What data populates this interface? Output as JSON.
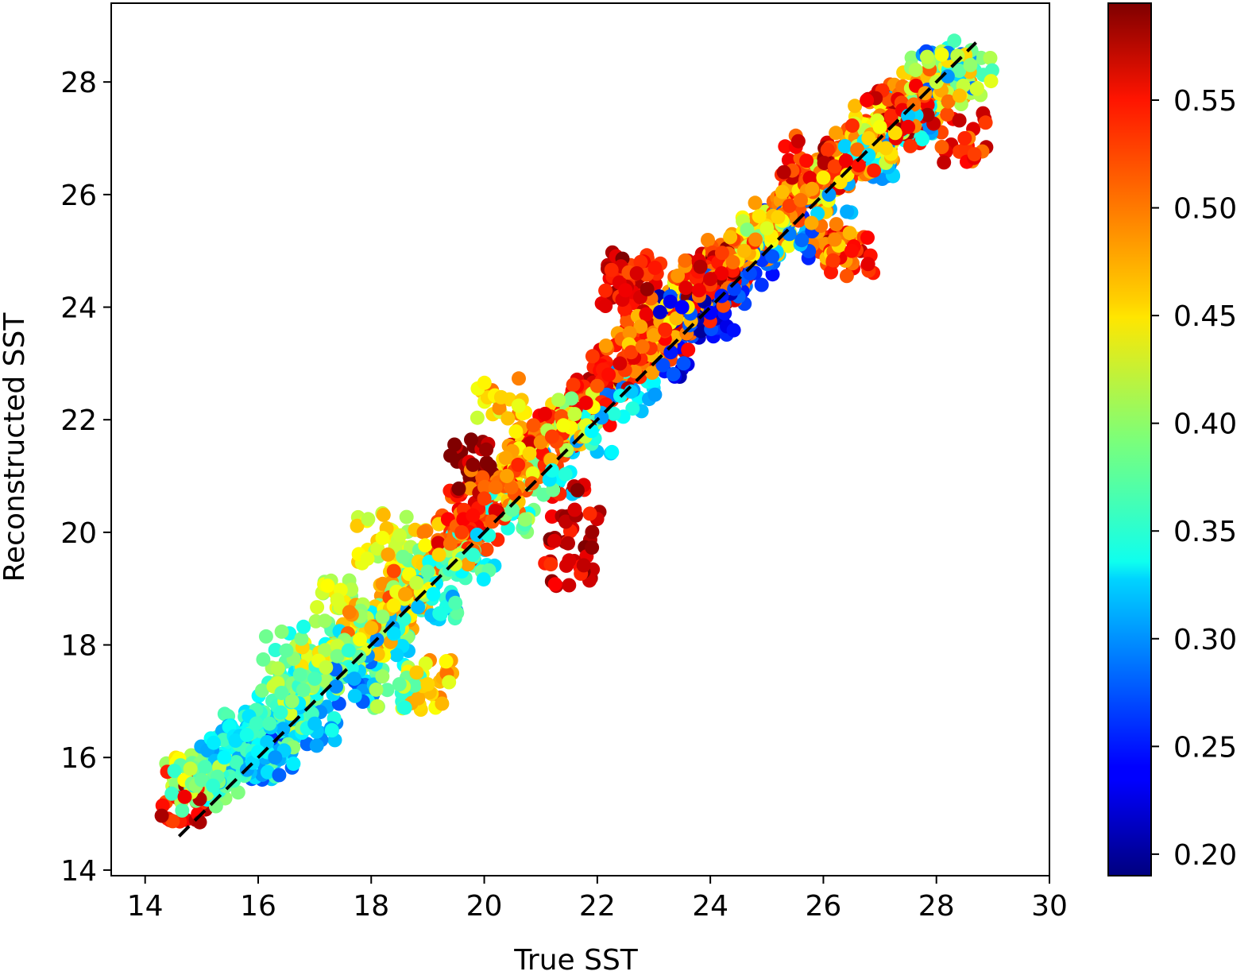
{
  "chart_data": {
    "type": "scatter",
    "xlabel": "True SST",
    "ylabel": "Reconstructed SST",
    "xlim": [
      13.4,
      30
    ],
    "ylim": [
      13.9,
      29.4
    ],
    "xticks": [
      14,
      16,
      18,
      20,
      22,
      24,
      26,
      28,
      30
    ],
    "yticks": [
      14,
      16,
      18,
      20,
      22,
      24,
      26,
      28
    ],
    "xtick_labels": [
      "14",
      "16",
      "18",
      "20",
      "22",
      "24",
      "26",
      "28",
      "30"
    ],
    "ytick_labels": [
      "14",
      "16",
      "18",
      "20",
      "22",
      "24",
      "26",
      "28"
    ],
    "grid": false,
    "colormap": "jet",
    "colorbar": {
      "range": [
        0.19,
        0.595
      ],
      "ticks": [
        0.2,
        0.25,
        0.3,
        0.35,
        0.4,
        0.45,
        0.5,
        0.55
      ],
      "tick_labels": [
        "0.20",
        "0.25",
        "0.30",
        "0.35",
        "0.40",
        "0.45",
        "0.50",
        "0.55"
      ]
    },
    "reference_line": {
      "style": "dashed",
      "color": "#000000",
      "x": [
        14.6,
        28.7
      ],
      "y": [
        14.6,
        28.7
      ]
    },
    "series": [
      {
        "x": [
          14.7,
          14.8,
          14.9,
          15.0,
          15.2,
          15.4,
          15.6,
          15.8,
          16.0,
          16.2,
          16.4,
          16.6,
          16.8,
          17.0,
          17.2,
          17.4,
          17.6,
          17.8,
          18.0,
          18.2,
          18.4,
          18.6,
          18.8,
          19.0,
          19.2,
          19.4,
          19.6,
          19.8,
          20.0,
          20.2,
          20.4,
          20.6,
          20.8,
          21.0,
          21.2,
          21.4,
          21.6,
          21.8,
          22.0,
          22.2,
          22.4,
          22.6,
          22.8,
          23.0,
          23.2,
          23.4,
          23.6,
          23.8,
          24.0,
          24.2,
          24.4,
          24.6,
          24.8,
          25.0,
          25.2,
          25.4,
          25.6,
          25.8,
          26.0,
          26.2,
          26.4,
          26.6,
          26.8,
          27.0,
          27.2,
          27.4,
          27.6,
          27.8,
          28.0,
          28.2,
          28.4,
          28.6,
          16.3,
          17.0,
          17.7,
          18.4,
          19.1,
          19.8,
          20.5,
          21.2,
          21.9,
          22.6,
          23.3,
          24.0,
          24.7,
          25.4,
          26.1,
          26.8,
          27.5,
          28.2,
          21.5,
          22.7,
          24.0,
          22.5,
          23.8,
          26.5,
          27.5,
          28.5,
          19.8,
          21.6,
          16.5,
          18.2,
          18.5,
          19.0,
          23.5,
          24.2,
          25.7,
          20.3,
          26.2,
          17.4
        ],
        "y": [
          15.3,
          15.8,
          15.5,
          15.6,
          15.5,
          16.0,
          16.3,
          16.4,
          16.1,
          16.6,
          16.8,
          17.0,
          17.2,
          17.4,
          17.6,
          17.8,
          17.9,
          18.1,
          18.3,
          18.5,
          18.7,
          18.9,
          19.1,
          19.3,
          19.6,
          19.8,
          20.0,
          20.3,
          20.6,
          20.8,
          21.0,
          21.2,
          21.4,
          21.6,
          21.7,
          21.9,
          22.1,
          22.3,
          22.6,
          22.8,
          23.0,
          23.2,
          23.3,
          23.5,
          23.6,
          23.8,
          24.0,
          24.2,
          24.4,
          24.6,
          24.8,
          25.0,
          25.2,
          25.4,
          25.6,
          25.8,
          25.9,
          26.1,
          26.3,
          26.5,
          26.6,
          26.8,
          27.0,
          27.2,
          27.4,
          27.5,
          27.6,
          27.8,
          28.0,
          28.1,
          28.2,
          28.3,
          16.0,
          16.6,
          17.4,
          18.2,
          18.9,
          19.6,
          20.4,
          21.1,
          21.8,
          22.5,
          23.2,
          23.9,
          24.6,
          25.3,
          26.0,
          26.7,
          27.4,
          28.1,
          19.5,
          24.6,
          24.5,
          24.3,
          24.3,
          25.0,
          27.2,
          27.0,
          21.2,
          20.4,
          17.9,
          19.9,
          17.3,
          17.3,
          24.0,
          24.2,
          26.6,
          22.4,
          25.2,
          18.8
        ],
        "c": [
          0.55,
          0.42,
          0.4,
          0.38,
          0.36,
          0.34,
          0.33,
          0.35,
          0.34,
          0.37,
          0.36,
          0.4,
          0.38,
          0.37,
          0.42,
          0.39,
          0.36,
          0.44,
          0.47,
          0.4,
          0.45,
          0.48,
          0.42,
          0.38,
          0.46,
          0.5,
          0.52,
          0.54,
          0.52,
          0.5,
          0.48,
          0.53,
          0.46,
          0.49,
          0.52,
          0.44,
          0.42,
          0.55,
          0.51,
          0.54,
          0.56,
          0.52,
          0.5,
          0.48,
          0.53,
          0.47,
          0.45,
          0.5,
          0.52,
          0.55,
          0.5,
          0.47,
          0.49,
          0.43,
          0.46,
          0.52,
          0.5,
          0.48,
          0.45,
          0.52,
          0.55,
          0.5,
          0.46,
          0.44,
          0.53,
          0.55,
          0.5,
          0.48,
          0.42,
          0.45,
          0.38,
          0.4,
          0.3,
          0.32,
          0.31,
          0.33,
          0.34,
          0.36,
          0.38,
          0.35,
          0.34,
          0.32,
          0.25,
          0.24,
          0.27,
          0.29,
          0.3,
          0.33,
          0.32,
          0.3,
          0.56,
          0.56,
          0.56,
          0.55,
          0.55,
          0.54,
          0.55,
          0.53,
          0.59,
          0.56,
          0.38,
          0.44,
          0.38,
          0.46,
          0.24,
          0.25,
          0.54,
          0.46,
          0.49,
          0.43
        ]
      }
    ]
  }
}
